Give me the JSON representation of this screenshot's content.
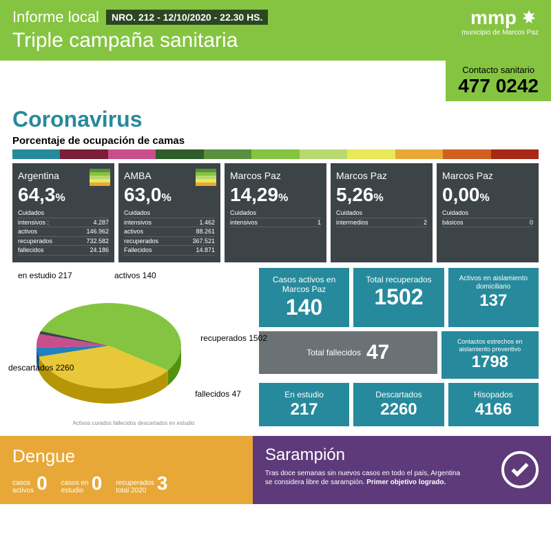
{
  "header": {
    "informe": "Informe local",
    "nro": "NRO. 212 - 12/10/2020 - 22.30 HS.",
    "triple": "Triple campaña sanitaria",
    "logo_main": "mmp",
    "logo_sub": "municipio de Marcos Paz"
  },
  "contact": {
    "label": "Contacto sanitario",
    "number": "477 0242"
  },
  "coronavirus": {
    "title": "Coronavirus",
    "subtitle": "Porcentaje de ocupación de camas",
    "strip_colors": [
      "#268a9c",
      "#7a1e3a",
      "#c94f8c",
      "#2e5c2a",
      "#5a8f3e",
      "#85c441",
      "#b8d96f",
      "#e8e85a",
      "#e8a838",
      "#d06020",
      "#a82818"
    ]
  },
  "cards": [
    {
      "title": "Argentina",
      "pct": "64,3",
      "lines": [
        [
          "Cuidados",
          ""
        ],
        [
          "intensivos :",
          "4.287"
        ],
        [
          "activos",
          "146.962"
        ],
        [
          "recuperados",
          "732.582"
        ],
        [
          "fallecidos",
          "24.186"
        ]
      ],
      "mini": [
        "#5a8f3e",
        "#85c441",
        "#b8d96f",
        "#e8e85a",
        "#e8a838"
      ]
    },
    {
      "title": "AMBA",
      "pct": "63,0",
      "lines": [
        [
          "Cuidados",
          ""
        ],
        [
          "intensivos",
          "1.462"
        ],
        [
          "activos",
          "88.261"
        ],
        [
          "recuperados",
          "367.521"
        ],
        [
          "Fallecidos",
          "14.871"
        ]
      ],
      "mini": [
        "#5a8f3e",
        "#85c441",
        "#b8d96f",
        "#e8e85a",
        "#e8a838"
      ]
    },
    {
      "title": "Marcos Paz",
      "pct": "14,29",
      "lines": [
        [
          "Cuidados",
          ""
        ],
        [
          "intensivos",
          "1"
        ]
      ],
      "mini": []
    },
    {
      "title": "Marcos Paz",
      "pct": "5,26",
      "lines": [
        [
          "Cuidados",
          ""
        ],
        [
          "intermedios",
          "2"
        ]
      ],
      "mini": []
    },
    {
      "title": "Marcos Paz",
      "pct": "0,00",
      "lines": [
        [
          "Cuidados",
          ""
        ],
        [
          "básicos",
          "0"
        ]
      ],
      "mini": []
    }
  ],
  "pie": {
    "slices": [
      {
        "label": "descartados 2260",
        "value": 2260,
        "color": "#85c441"
      },
      {
        "label": "recuperados 1502",
        "value": 1502,
        "color": "#e8c838"
      },
      {
        "label": "activos 140",
        "value": 140,
        "color": "#2080c0"
      },
      {
        "label": "en estudio 217",
        "value": 217,
        "color": "#c94f8c"
      },
      {
        "label": "fallecidos 47",
        "value": 47,
        "color": "#3d4447"
      }
    ],
    "legend": "Activos   curados   fallecidos   descartados   en estudio"
  },
  "tiles": {
    "casos_activos": {
      "label": "Casos activos en Marcos Paz",
      "num": "140"
    },
    "recuperados": {
      "label": "Total recuperados",
      "num": "1502"
    },
    "aislamiento": {
      "label": "Activos en aislamiento domiciliario",
      "num": "137"
    },
    "fallecidos": {
      "label": "Total fallecidos",
      "num": "47"
    },
    "contactos": {
      "label": "Contactos estrechos en aislamiento preventivo",
      "num": "1798"
    },
    "estudio": {
      "label": "En estudio",
      "num": "217"
    },
    "descartados": {
      "label": "Descartados",
      "num": "2260"
    },
    "hisopados": {
      "label": "Hisopados",
      "num": "4166"
    }
  },
  "dengue": {
    "title": "Dengue",
    "stats": [
      {
        "label": "casos\nactivos",
        "num": "0"
      },
      {
        "label": "casos en\nestudio",
        "num": "0"
      },
      {
        "label": "recuperados\ntotal 2020",
        "num": "3"
      }
    ]
  },
  "sarampion": {
    "title": "Sarampión",
    "text": "Tras doce semanas sin nuevos casos en todo el país, Argentina se considera libre de sarampión. ",
    "bold": "Primer objetivo logrado."
  }
}
